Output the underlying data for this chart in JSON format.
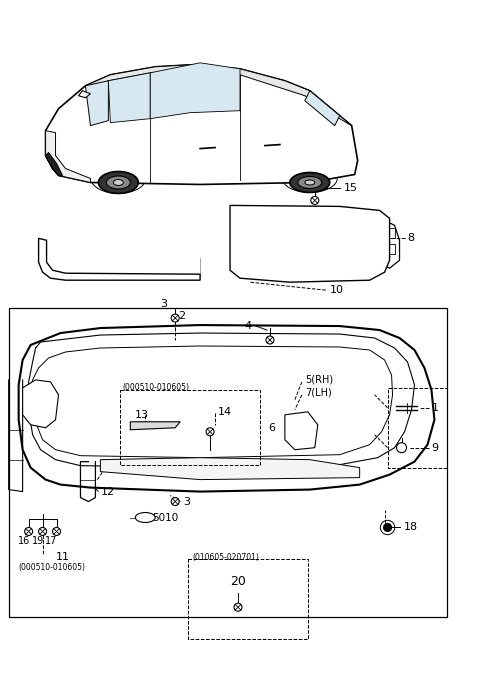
{
  "bg_color": "#ffffff",
  "fig_width": 4.8,
  "fig_height": 6.91,
  "dpi": 100,
  "text_color": "#000000",
  "line_color": "#000000",
  "gray": "#888888"
}
